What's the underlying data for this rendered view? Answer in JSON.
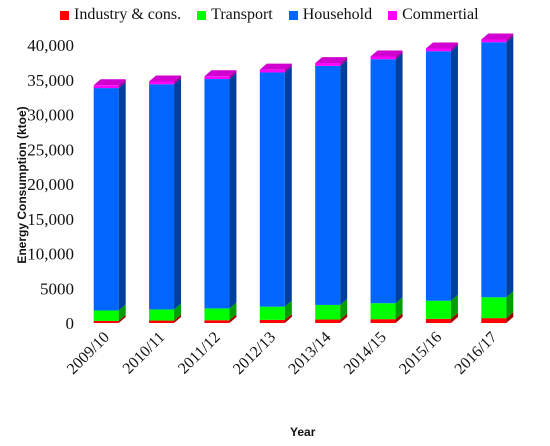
{
  "chart_data": {
    "type": "bar",
    "stacked": true,
    "three_d": true,
    "categories": [
      "2009/10",
      "2010/11",
      "2011/12",
      "2012/13",
      "2013/14",
      "2014/15",
      "2015/16",
      "2016/17"
    ],
    "series": [
      {
        "name": "Industry & cons.",
        "color": "#ff0000",
        "values": [
          300,
          350,
          400,
          450,
          500,
          550,
          600,
          700
        ]
      },
      {
        "name": "Transport",
        "color": "#00ff00",
        "values": [
          1500,
          1600,
          1700,
          1900,
          2100,
          2300,
          2600,
          3000
        ]
      },
      {
        "name": "Household",
        "color": "#0066ff",
        "values": [
          32000,
          32400,
          33000,
          33700,
          34400,
          35100,
          35900,
          36700
        ]
      },
      {
        "name": "Commertial",
        "color": "#ff00ff",
        "values": [
          400,
          400,
          400,
          400,
          400,
          400,
          400,
          400
        ]
      }
    ],
    "ylabel": "Energy Consumption (ktoe)",
    "xlabel": "Year",
    "ylim": [
      0,
      40000
    ],
    "yticks": [
      "0",
      "5000",
      "10,000",
      "15,000",
      "20,000",
      "25,000",
      "30,000",
      "35,000",
      "40,000"
    ],
    "ytick_values": [
      0,
      5000,
      10000,
      15000,
      20000,
      25000,
      30000,
      35000,
      40000
    ],
    "grid": false,
    "legend_position": "top"
  }
}
